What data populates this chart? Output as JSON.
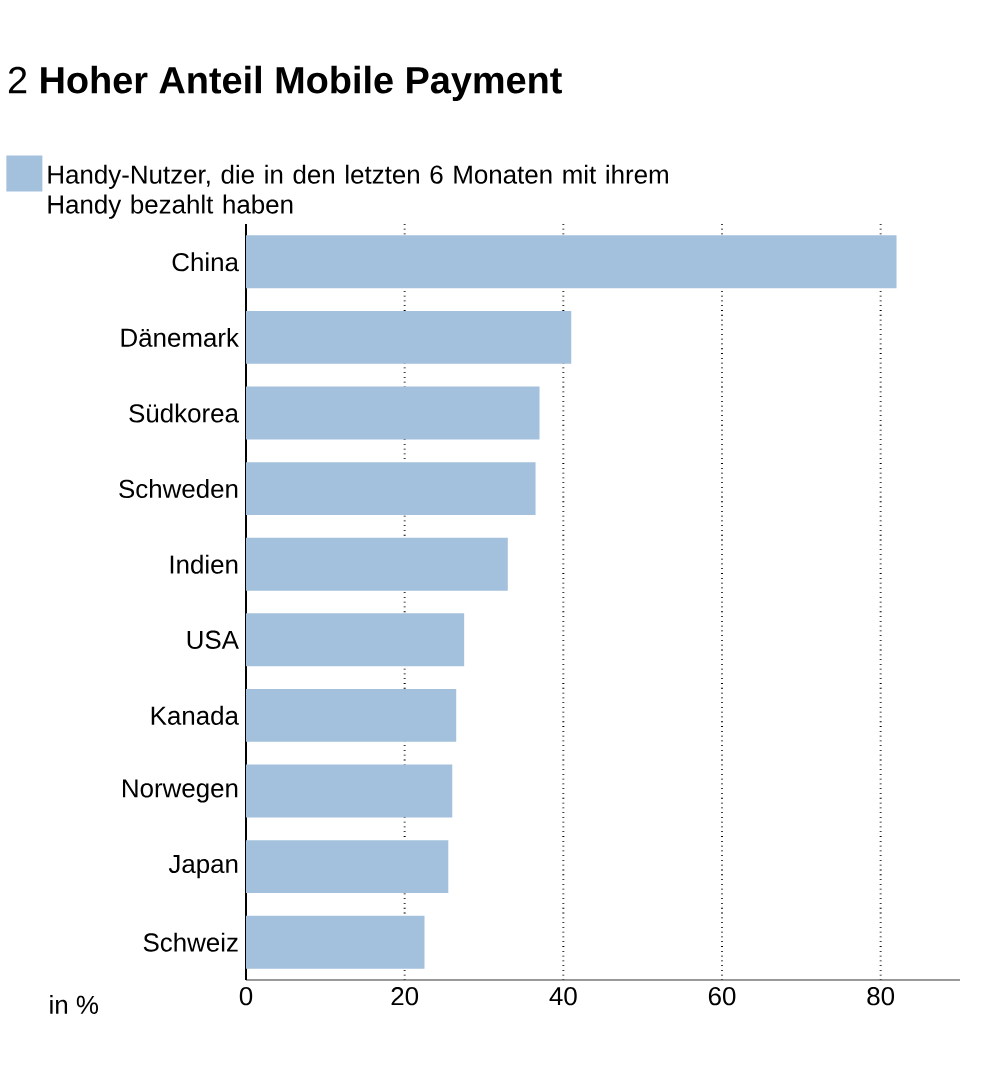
{
  "chart_data": {
    "type": "bar",
    "orientation": "horizontal",
    "title": "2 **Hoher Anteil Mobile Payment**",
    "xlabel": "in %",
    "categories": [
      "China",
      "Dänemark",
      "Südkorea",
      "Schweden",
      "Indien",
      "USA",
      "Kanada",
      "Norwegen",
      "Japan",
      "Schweiz"
    ],
    "series": [
      {
        "name": "Handy-Nutzer, die in den letzten 6 Monaten mit ihrem Handy bezahlt haben",
        "color": "#a3c0dd",
        "values": [
          82,
          41,
          37,
          36.5,
          33,
          27.5,
          26.5,
          26,
          25.5,
          22.5
        ]
      }
    ],
    "xlim": [
      0,
      90
    ],
    "xticks": [
      0,
      20,
      40,
      60,
      80
    ],
    "grid": "x",
    "legend": "top"
  }
}
